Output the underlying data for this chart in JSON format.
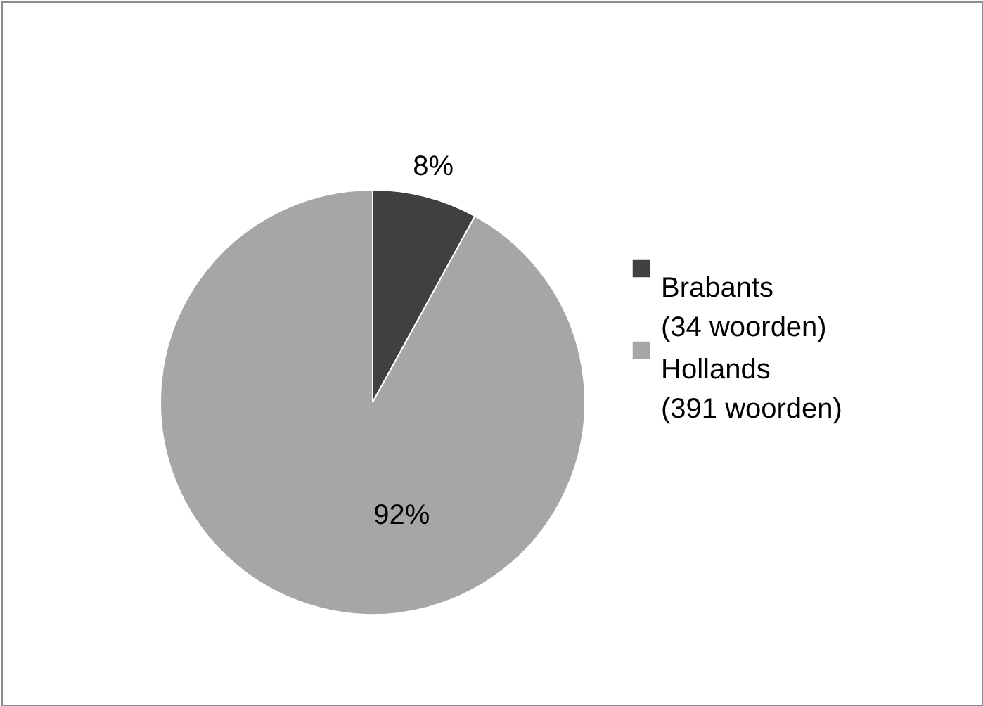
{
  "chart_data": {
    "type": "pie",
    "categories": [
      "Brabants\n(34 woorden)",
      "Hollands\n(391 woorden)"
    ],
    "values": [
      8,
      92
    ],
    "colors": [
      "#404040",
      "#a6a6a6"
    ],
    "value_labels": [
      "8%",
      "92%"
    ],
    "legend": "right"
  }
}
